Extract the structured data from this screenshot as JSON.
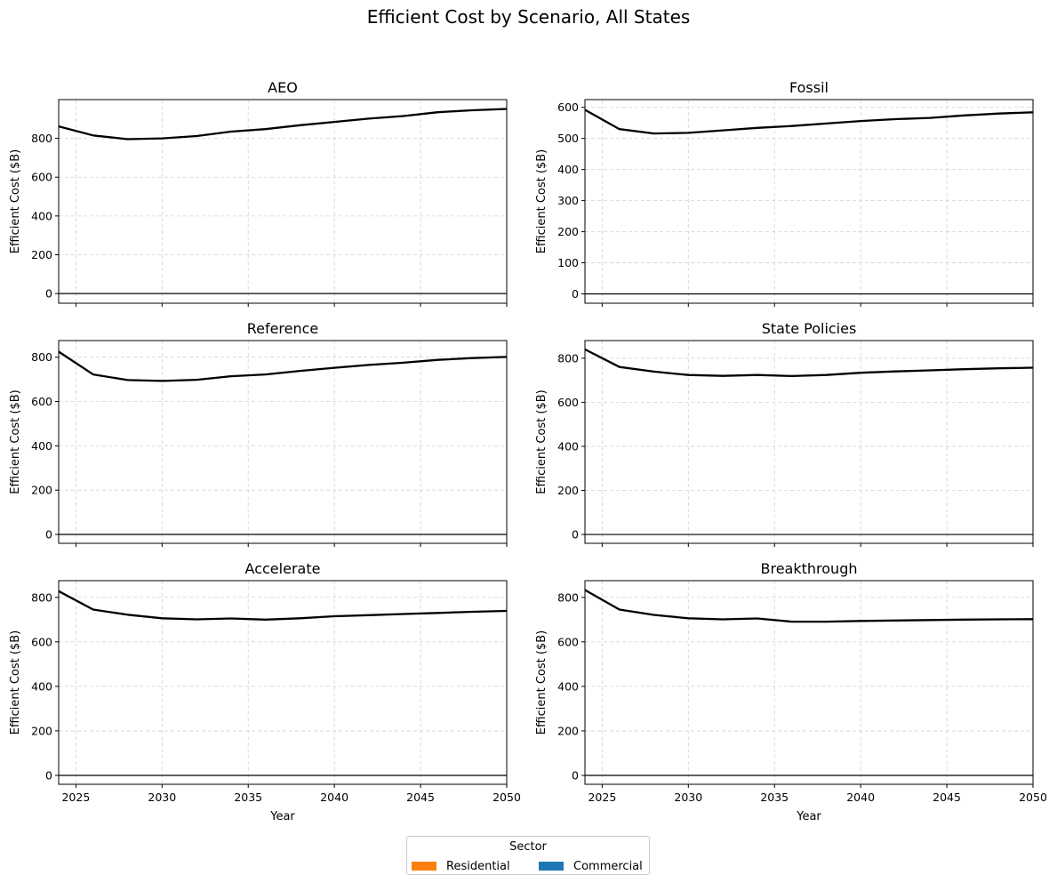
{
  "figure": {
    "title": "Efficient Cost by Scenario, All States"
  },
  "legend": {
    "title": "Sector",
    "placement": "lower-center",
    "entries": [
      {
        "label": "Residential",
        "color": "#ff7f0e"
      },
      {
        "label": "Commercial",
        "color": "#1f77b4"
      }
    ]
  },
  "chart_data": [
    {
      "type": "line",
      "title": "AEO",
      "xlabel": "",
      "ylabel": "Efficient Cost ($B)",
      "xlim": [
        2024,
        2050
      ],
      "ylim": [
        -50,
        1000
      ],
      "xticks": [
        2025,
        2030,
        2035,
        2040,
        2045,
        2050
      ],
      "yticks": [
        0,
        200,
        400,
        600,
        800
      ],
      "grid": true,
      "zero_line": true,
      "series": [
        {
          "color": "#000000",
          "x": [
            2024,
            2026,
            2028,
            2030,
            2032,
            2034,
            2036,
            2038,
            2040,
            2042,
            2044,
            2046,
            2048,
            2050
          ],
          "y": [
            862,
            815,
            796,
            800,
            812,
            835,
            848,
            868,
            885,
            902,
            915,
            935,
            945,
            952
          ]
        }
      ]
    },
    {
      "type": "line",
      "title": "Fossil",
      "xlabel": "",
      "ylabel": "Efficient Cost ($B)",
      "xlim": [
        2024,
        2050
      ],
      "ylim": [
        -30,
        625
      ],
      "xticks": [
        2025,
        2030,
        2035,
        2040,
        2045,
        2050
      ],
      "yticks": [
        0,
        100,
        200,
        300,
        400,
        500,
        600
      ],
      "grid": true,
      "zero_line": true,
      "series": [
        {
          "color": "#000000",
          "x": [
            2024,
            2026,
            2028,
            2030,
            2032,
            2034,
            2036,
            2038,
            2040,
            2042,
            2044,
            2046,
            2048,
            2050
          ],
          "y": [
            592,
            530,
            516,
            518,
            526,
            534,
            540,
            548,
            556,
            562,
            566,
            574,
            580,
            584
          ]
        }
      ]
    },
    {
      "type": "line",
      "title": "Reference",
      "xlabel": "",
      "ylabel": "Efficient Cost ($B)",
      "xlim": [
        2024,
        2050
      ],
      "ylim": [
        -40,
        875
      ],
      "xticks": [
        2025,
        2030,
        2035,
        2040,
        2045,
        2050
      ],
      "yticks": [
        0,
        200,
        400,
        600,
        800
      ],
      "grid": true,
      "zero_line": true,
      "series": [
        {
          "color": "#000000",
          "x": [
            2024,
            2026,
            2028,
            2030,
            2032,
            2034,
            2036,
            2038,
            2040,
            2042,
            2044,
            2046,
            2048,
            2050
          ],
          "y": [
            825,
            722,
            697,
            693,
            698,
            714,
            722,
            738,
            752,
            765,
            775,
            788,
            796,
            801
          ]
        }
      ]
    },
    {
      "type": "line",
      "title": "State Policies",
      "xlabel": "",
      "ylabel": "Efficient Cost ($B)",
      "xlim": [
        2024,
        2050
      ],
      "ylim": [
        -40,
        880
      ],
      "xticks": [
        2025,
        2030,
        2035,
        2040,
        2045,
        2050
      ],
      "yticks": [
        0,
        200,
        400,
        600,
        800
      ],
      "grid": true,
      "zero_line": true,
      "series": [
        {
          "color": "#000000",
          "x": [
            2024,
            2026,
            2028,
            2030,
            2032,
            2034,
            2036,
            2038,
            2040,
            2042,
            2044,
            2046,
            2048,
            2050
          ],
          "y": [
            840,
            760,
            739,
            724,
            720,
            724,
            719,
            724,
            734,
            740,
            745,
            750,
            754,
            757
          ]
        }
      ]
    },
    {
      "type": "line",
      "title": "Accelerate",
      "xlabel": "Year",
      "ylabel": "Efficient Cost ($B)",
      "xlim": [
        2024,
        2050
      ],
      "ylim": [
        -40,
        875
      ],
      "xticks": [
        2025,
        2030,
        2035,
        2040,
        2045,
        2050
      ],
      "yticks": [
        0,
        200,
        400,
        600,
        800
      ],
      "grid": true,
      "zero_line": true,
      "series": [
        {
          "color": "#000000",
          "x": [
            2024,
            2026,
            2028,
            2030,
            2032,
            2034,
            2036,
            2038,
            2040,
            2042,
            2044,
            2046,
            2048,
            2050
          ],
          "y": [
            828,
            745,
            722,
            706,
            701,
            705,
            700,
            706,
            715,
            720,
            725,
            730,
            735,
            739
          ]
        }
      ]
    },
    {
      "type": "line",
      "title": "Breakthrough",
      "xlabel": "Year",
      "ylabel": "Efficient Cost ($B)",
      "xlim": [
        2024,
        2050
      ],
      "ylim": [
        -40,
        875
      ],
      "xticks": [
        2025,
        2030,
        2035,
        2040,
        2045,
        2050
      ],
      "yticks": [
        0,
        200,
        400,
        600,
        800
      ],
      "grid": true,
      "zero_line": true,
      "series": [
        {
          "color": "#000000",
          "x": [
            2024,
            2026,
            2028,
            2030,
            2032,
            2034,
            2036,
            2038,
            2040,
            2042,
            2044,
            2046,
            2048,
            2050
          ],
          "y": [
            833,
            745,
            721,
            706,
            701,
            705,
            691,
            691,
            694,
            696,
            698,
            700,
            701,
            702
          ]
        }
      ]
    }
  ]
}
